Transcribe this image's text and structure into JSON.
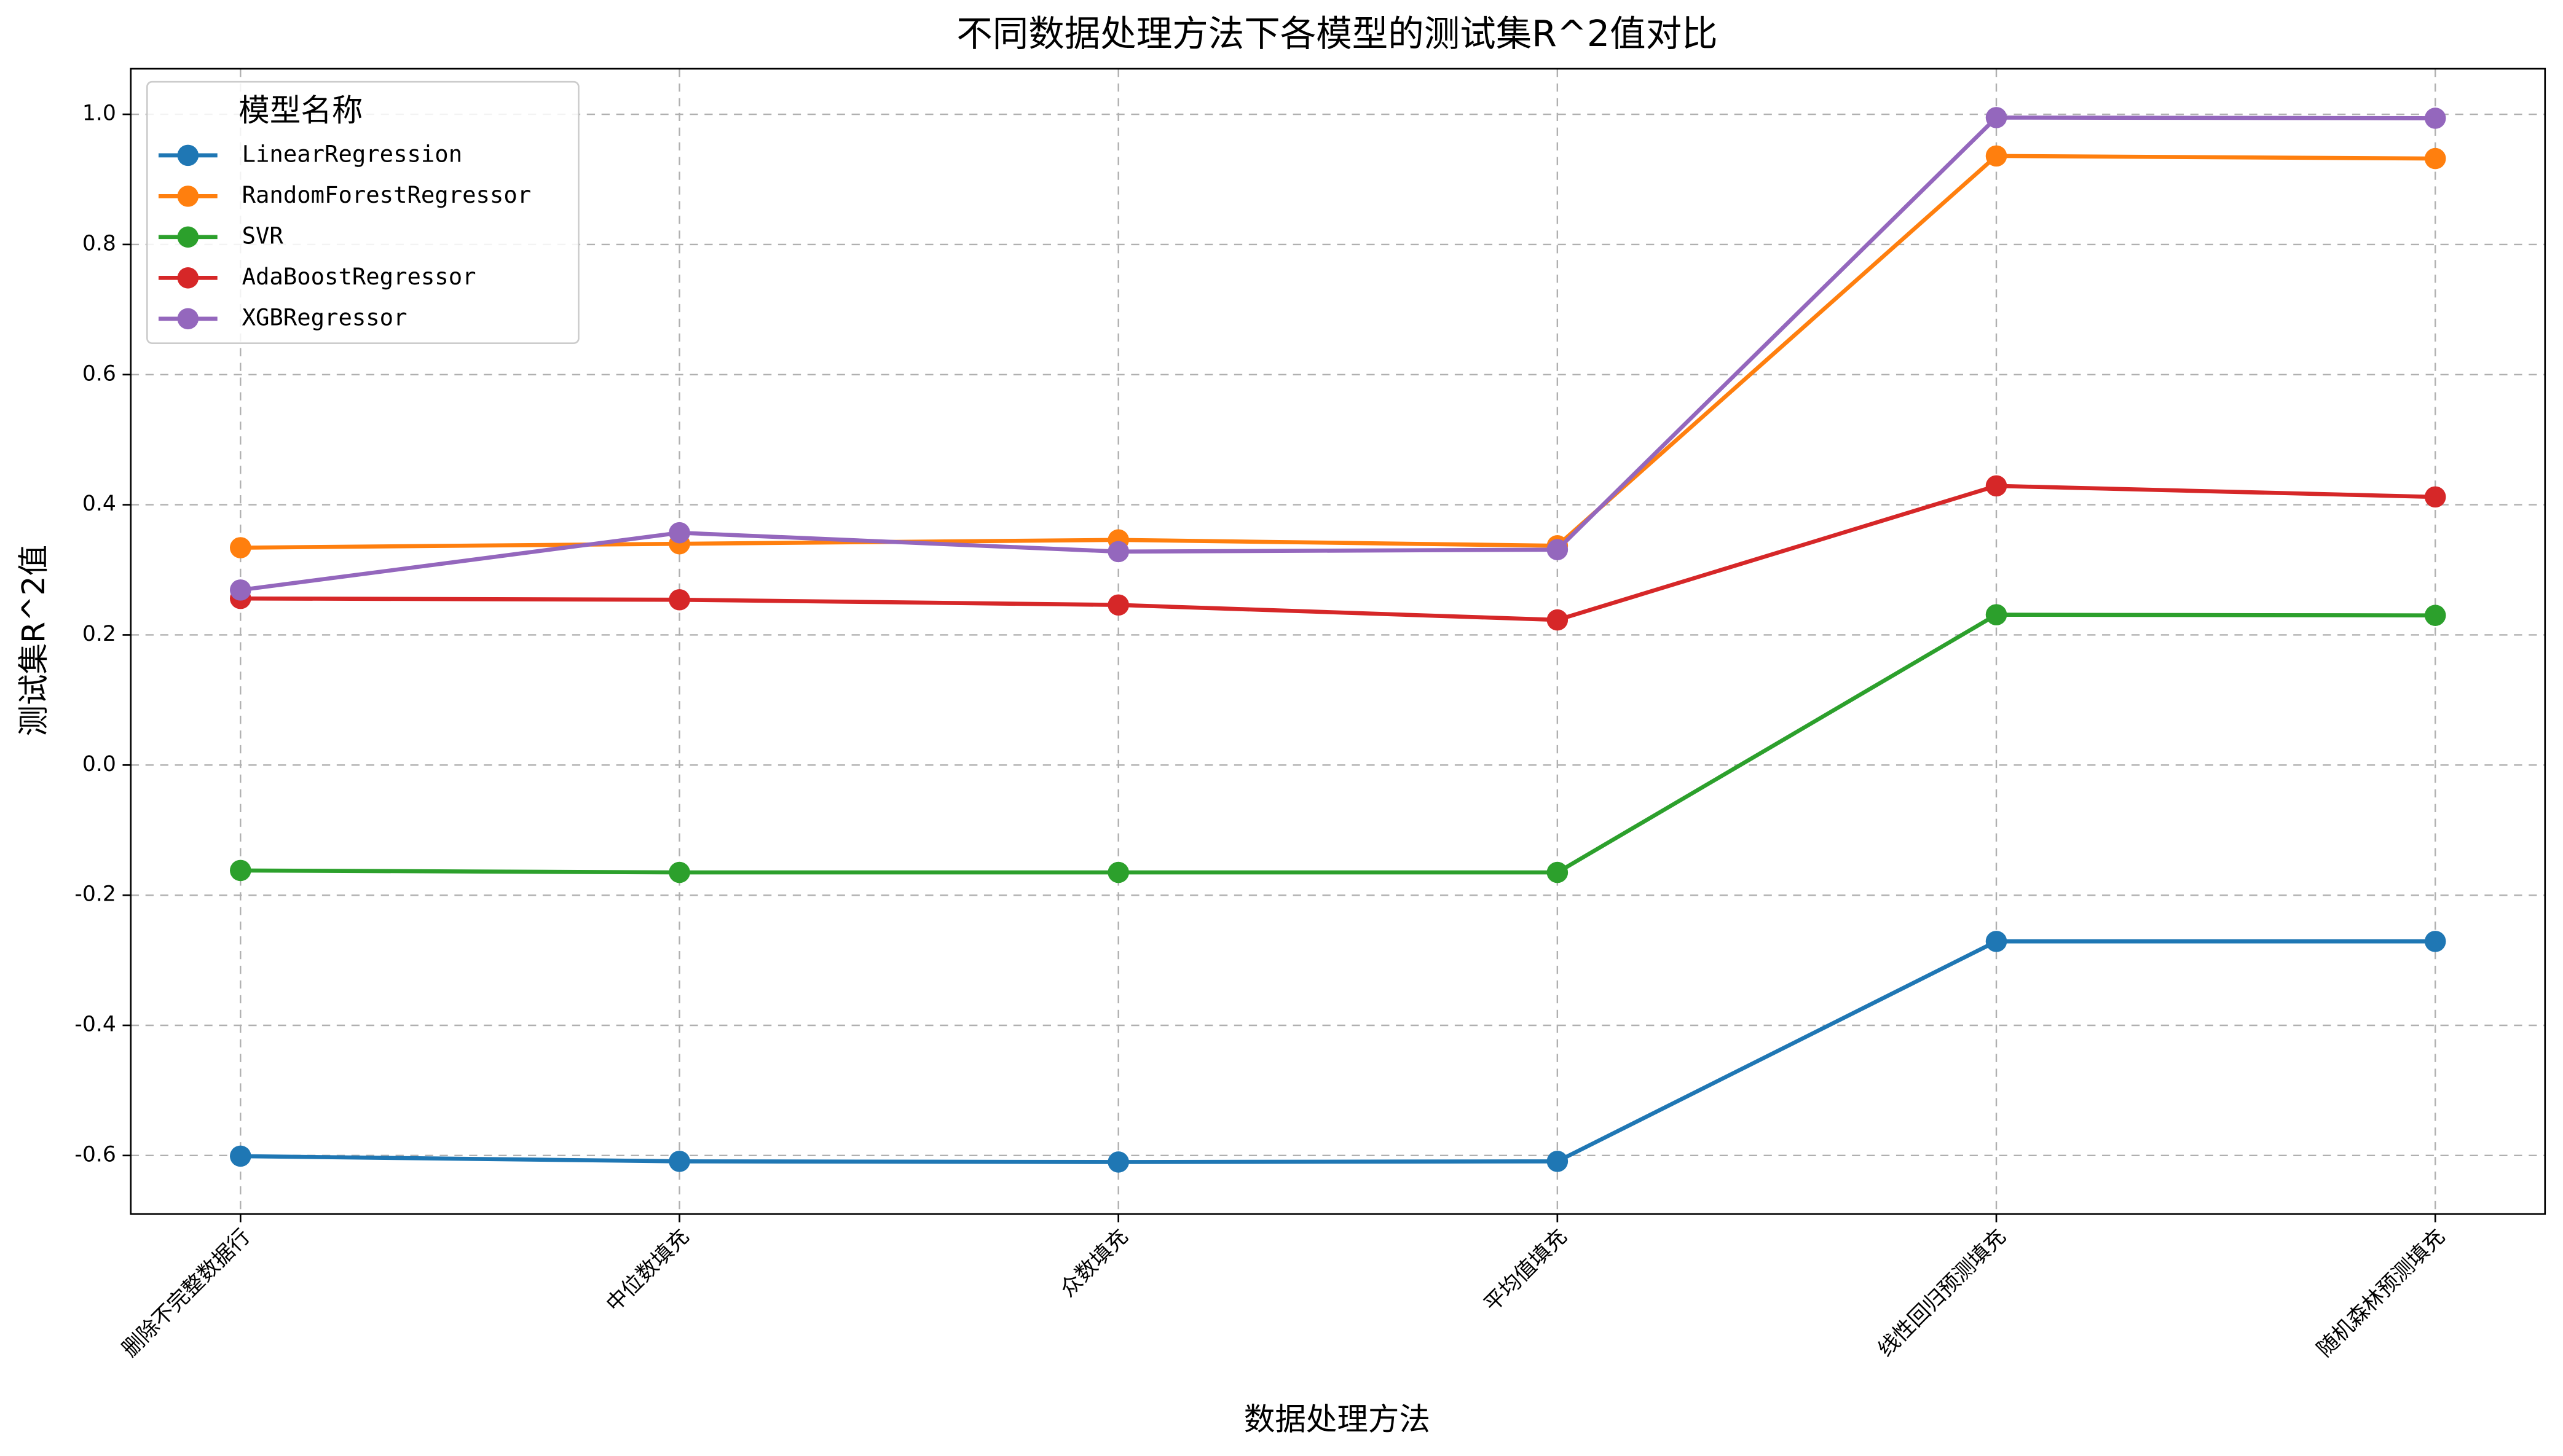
{
  "chart_data": {
    "type": "line",
    "title": "不同数据处理方法下各模型的测试集R^2值对比",
    "x_label": "数据处理方法",
    "y_label": "测试集R^2值",
    "categories": [
      "删除不完整数据行",
      "中位数填充",
      "众数填充",
      "平均值填充",
      "线性回归预测填充",
      "随机森林预测填充"
    ],
    "series": [
      {
        "name": "LinearRegression",
        "color": "#1f77b4",
        "values": [
          -0.601,
          -0.609,
          -0.61,
          -0.609,
          -0.271,
          -0.271
        ]
      },
      {
        "name": "RandomForestRegressor",
        "color": "#ff7f0e",
        "values": [
          0.334,
          0.34,
          0.346,
          0.337,
          0.936,
          0.932
        ]
      },
      {
        "name": "SVR",
        "color": "#2ca02c",
        "values": [
          -0.162,
          -0.165,
          -0.165,
          -0.165,
          0.231,
          0.23
        ]
      },
      {
        "name": "AdaBoostRegressor",
        "color": "#d62728",
        "values": [
          0.256,
          0.254,
          0.246,
          0.223,
          0.429,
          0.412
        ]
      },
      {
        "name": "XGBRegressor",
        "color": "#9467bd",
        "values": [
          0.269,
          0.357,
          0.328,
          0.331,
          0.995,
          0.994
        ]
      }
    ],
    "ylim": [
      -0.69,
      1.07
    ],
    "yticks": [
      -0.6,
      -0.4,
      -0.2,
      {
        "value": 0,
        "label": "0.0"
      },
      0.2,
      0.4,
      0.6,
      0.8,
      {
        "value": 1,
        "label": "1.0"
      }
    ],
    "grid": true,
    "legend_title": "模型名称",
    "legend_position": "upper left"
  }
}
